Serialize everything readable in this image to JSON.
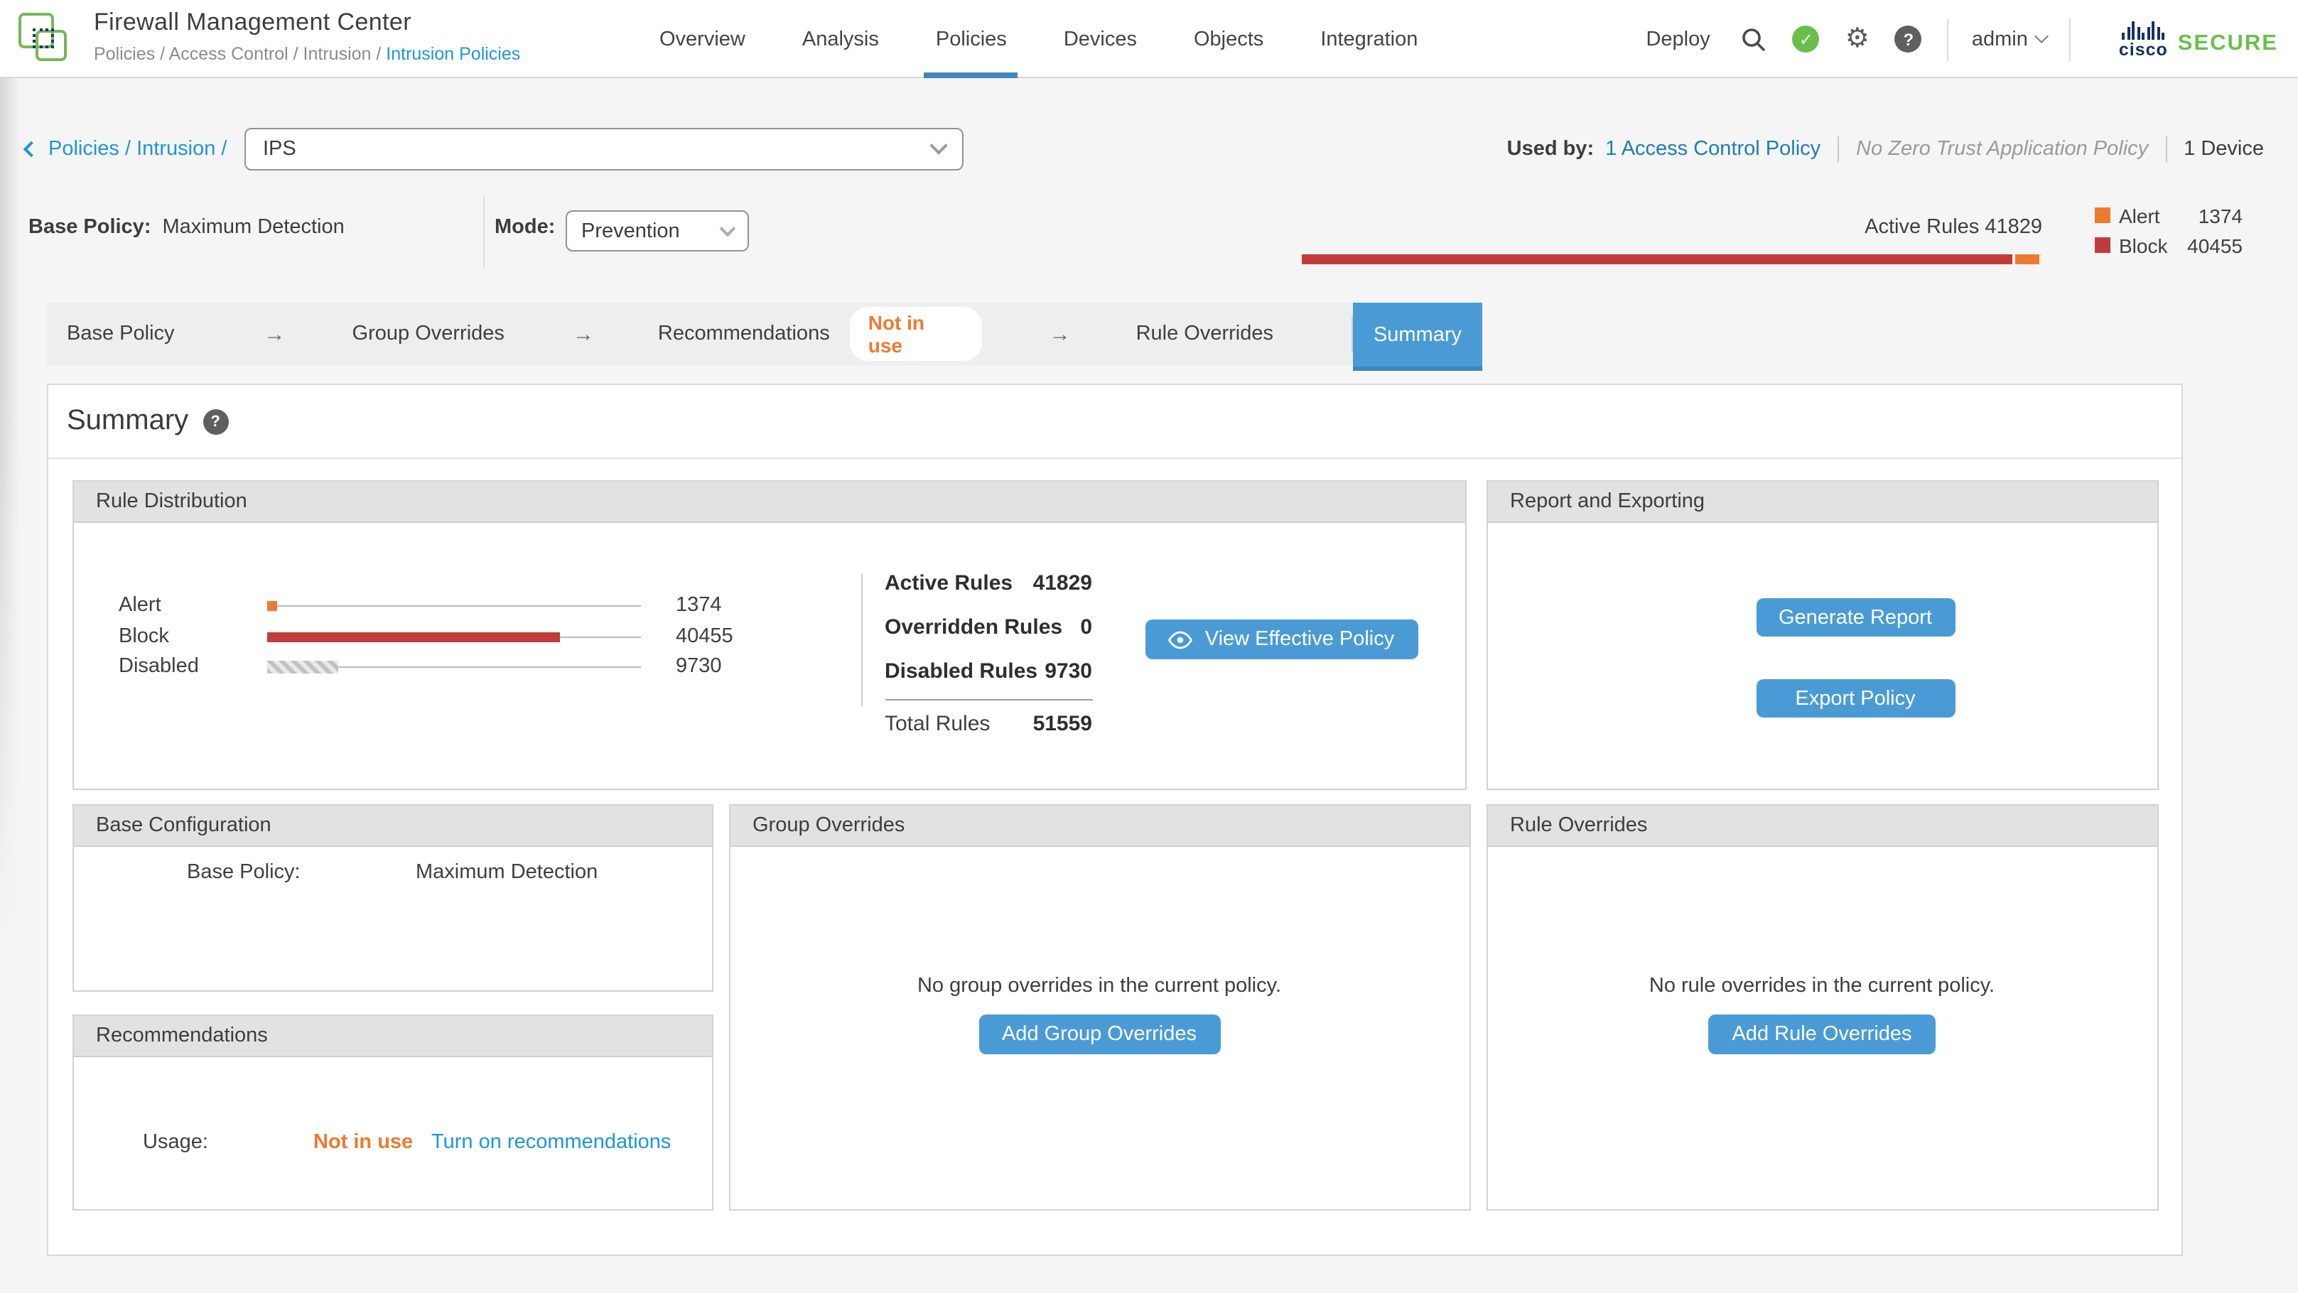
{
  "header": {
    "app_title": "Firewall Management Center",
    "breadcrumb_prefix": "Policies / Access Control / Intrusion / ",
    "breadcrumb_current": "Intrusion Policies",
    "nav_items": [
      "Overview",
      "Analysis",
      "Policies",
      "Devices",
      "Objects",
      "Integration"
    ],
    "active_nav": "Policies",
    "deploy_label": "Deploy",
    "user": "admin",
    "brand_cisco": "cisco",
    "brand_secure": "SECURE"
  },
  "policy_header": {
    "back_breadcrumb": "Policies / Intrusion /",
    "policy_selector_value": "IPS",
    "used_by_label": "Used by:",
    "used_by_acp_link": "1 Access Control Policy",
    "used_by_ztap": "No Zero Trust Application Policy",
    "used_by_devices": "1 Device",
    "base_policy_label": "Base Policy:",
    "base_policy_value": "Maximum Detection",
    "mode_label": "Mode:",
    "mode_value": "Prevention",
    "active_rules_text": "Active Rules 41829",
    "legend": [
      {
        "name": "Alert",
        "value": "1374",
        "color": "#ec7b30"
      },
      {
        "name": "Block",
        "value": "40455",
        "color": "#c13b3c"
      }
    ]
  },
  "stepper": {
    "steps": [
      "Base Policy",
      "Group Overrides",
      "Recommendations",
      "Rule Overrides"
    ],
    "arrow": "→",
    "recommendations_badge": "Not in use",
    "summary_tab": "Summary"
  },
  "summary": {
    "title": "Summary",
    "rule_distribution": {
      "title": "Rule Distribution",
      "stats": [
        {
          "label": "Active Rules",
          "value": "41829"
        },
        {
          "label": "Overridden Rules",
          "value": "0"
        },
        {
          "label": "Disabled Rules",
          "value": "9730"
        }
      ],
      "total_label": "Total Rules",
      "total_value": "51559",
      "view_button": "View Effective Policy"
    },
    "report": {
      "title": "Report and Exporting",
      "generate_button": "Generate Report",
      "export_button": "Export Policy"
    },
    "base_config": {
      "title": "Base Configuration",
      "base_policy_label": "Base Policy:",
      "base_policy_value": "Maximum Detection"
    },
    "recommendations": {
      "title": "Recommendations",
      "usage_label": "Usage:",
      "usage_value": "Not in use",
      "link": "Turn on recommendations"
    },
    "group_overrides": {
      "title": "Group Overrides",
      "empty_text": "No group overrides in the current policy.",
      "add_button": "Add Group Overrides"
    },
    "rule_overrides": {
      "title": "Rule Overrides",
      "empty_text": "No rule overrides in the current policy.",
      "add_button": "Add Rule Overrides"
    }
  },
  "chart_data": {
    "type": "bar",
    "title": "Rule Distribution",
    "categories": [
      "Alert",
      "Block",
      "Disabled"
    ],
    "values": [
      1374,
      40455,
      9730
    ],
    "display_values": [
      "1374",
      "40455",
      "9730"
    ],
    "colors": [
      "#ec7b30",
      "#c13b3c",
      "hatched-gray"
    ],
    "total": 51559,
    "active_rules": 41829,
    "xlim": [
      0,
      51559
    ],
    "orientation": "horizontal"
  },
  "colors": {
    "accent_blue": "#4a9bd5",
    "link_blue": "#1e96d9",
    "alert_orange": "#ec7b30",
    "block_red": "#c13b3c",
    "brand_green": "#6abf4b"
  }
}
